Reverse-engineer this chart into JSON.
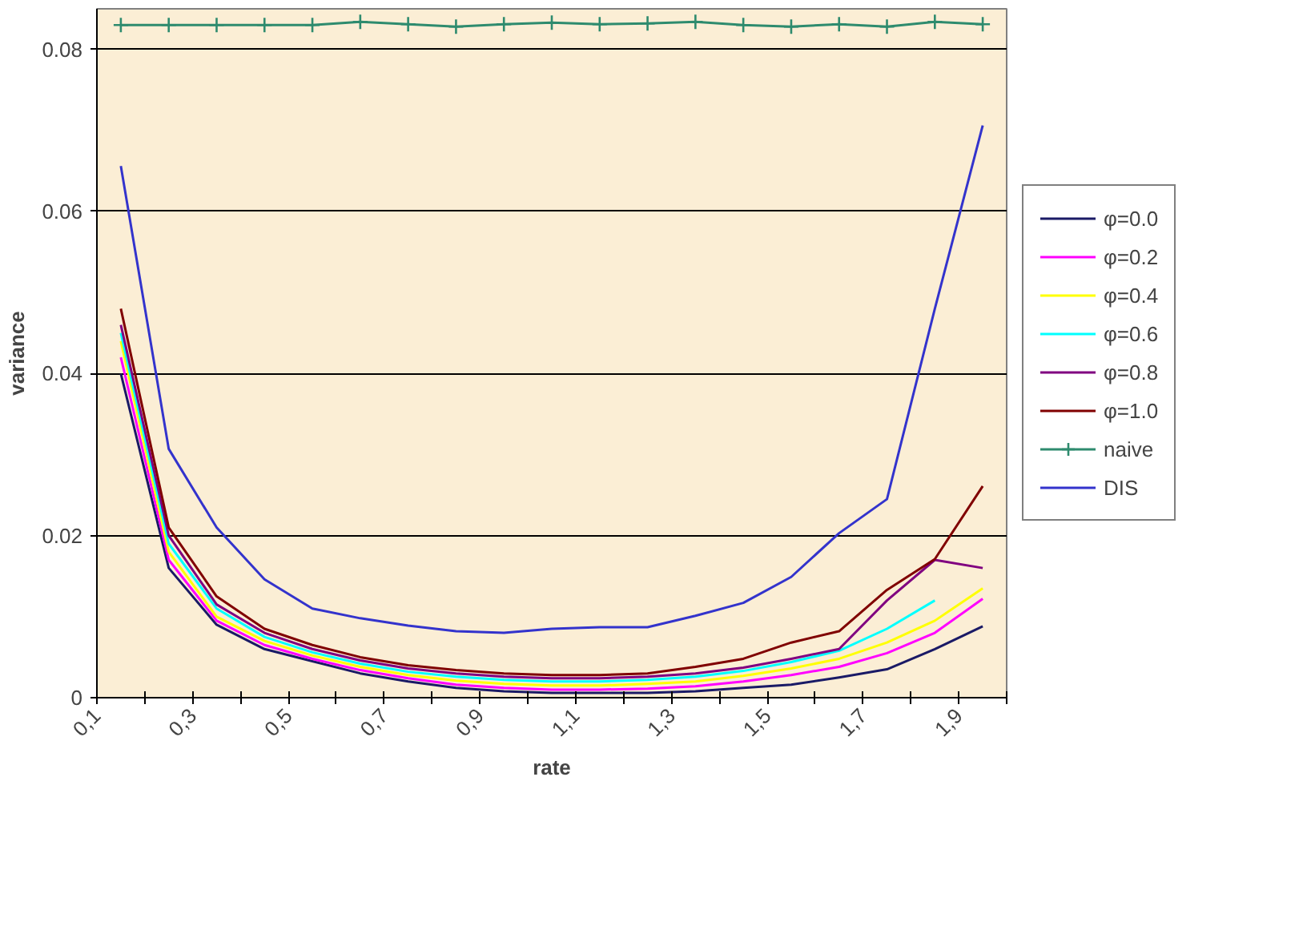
{
  "chart_data": {
    "type": "line",
    "xlabel": "rate",
    "ylabel": "variance",
    "x": [
      0.15,
      0.25,
      0.35,
      0.45,
      0.55,
      0.65,
      0.75,
      0.85,
      0.95,
      1.05,
      1.15,
      1.25,
      1.35,
      1.45,
      1.55,
      1.65,
      1.75,
      1.85,
      1.95
    ],
    "xlim": [
      0.1,
      2.0
    ],
    "xticks": [
      {
        "value": 0.1,
        "label": "0,1"
      },
      {
        "value": 0.2,
        "label": null
      },
      {
        "value": 0.3,
        "label": "0,3"
      },
      {
        "value": 0.4,
        "label": null
      },
      {
        "value": 0.5,
        "label": "0,5"
      },
      {
        "value": 0.6,
        "label": null
      },
      {
        "value": 0.7,
        "label": "0,7"
      },
      {
        "value": 0.8,
        "label": null
      },
      {
        "value": 0.9,
        "label": "0,9"
      },
      {
        "value": 1.0,
        "label": null
      },
      {
        "value": 1.1,
        "label": "1,1"
      },
      {
        "value": 1.2,
        "label": null
      },
      {
        "value": 1.3,
        "label": "1,3"
      },
      {
        "value": 1.4,
        "label": null
      },
      {
        "value": 1.5,
        "label": "1,5"
      },
      {
        "value": 1.6,
        "label": null
      },
      {
        "value": 1.7,
        "label": "1,7"
      },
      {
        "value": 1.8,
        "label": null
      },
      {
        "value": 1.9,
        "label": "1,9"
      },
      {
        "value": 2.0,
        "label": null
      }
    ],
    "ylim": [
      0,
      0.085
    ],
    "yticks": [
      0,
      0.02,
      0.04,
      0.06,
      0.08
    ],
    "grid": "y",
    "legend": "right",
    "marker": "none",
    "line_style": "solid",
    "series": [
      {
        "name": "φ=0.0",
        "color": "#1a1a66",
        "values": [
          0.04,
          0.016,
          0.009,
          0.006,
          0.0045,
          0.003,
          0.002,
          0.0012,
          0.0008,
          0.0006,
          0.0006,
          0.0006,
          0.0008,
          0.0012,
          0.0016,
          0.0025,
          0.0035,
          0.006,
          0.0088
        ]
      },
      {
        "name": "φ=0.2",
        "color": "#ff00ff",
        "values": [
          0.042,
          0.017,
          0.0095,
          0.0065,
          0.0048,
          0.0034,
          0.0024,
          0.0016,
          0.0012,
          0.001,
          0.001,
          0.0011,
          0.0014,
          0.002,
          0.0028,
          0.0038,
          0.0055,
          0.008,
          0.0122
        ]
      },
      {
        "name": "φ=0.4",
        "color": "#ffff00",
        "values": [
          0.044,
          0.018,
          0.01,
          0.007,
          0.0052,
          0.0038,
          0.0028,
          0.0021,
          0.0017,
          0.0015,
          0.0015,
          0.0017,
          0.002,
          0.0027,
          0.0036,
          0.0048,
          0.0068,
          0.0095,
          0.0135
        ]
      },
      {
        "name": "φ=0.6",
        "color": "#00ffff",
        "values": [
          0.045,
          0.019,
          0.011,
          0.0075,
          0.0056,
          0.0042,
          0.0032,
          0.0026,
          0.0022,
          0.002,
          0.002,
          0.0022,
          0.0026,
          0.0033,
          0.0044,
          0.0058,
          0.0085,
          0.012,
          null
        ]
      },
      {
        "name": "φ=0.8",
        "color": "#800080",
        "values": [
          0.046,
          0.02,
          0.0115,
          0.008,
          0.006,
          0.0046,
          0.0036,
          0.003,
          0.0026,
          0.0024,
          0.0024,
          0.0026,
          0.003,
          0.0037,
          0.0048,
          0.006,
          0.012,
          0.017,
          0.016
        ]
      },
      {
        "name": "φ=1.0",
        "color": "#800000",
        "values": [
          0.048,
          0.021,
          0.0125,
          0.0085,
          0.0065,
          0.005,
          0.004,
          0.0034,
          0.003,
          0.0028,
          0.0028,
          0.003,
          0.0038,
          0.0048,
          0.0068,
          0.0082,
          0.0133,
          0.0171,
          0.0261
        ]
      },
      {
        "name": "naive",
        "color": "#2e8b6e",
        "marker": "cross",
        "values": [
          0.083,
          0.083,
          0.083,
          0.083,
          0.083,
          0.0834,
          0.0831,
          0.0828,
          0.0831,
          0.0833,
          0.0831,
          0.0832,
          0.0834,
          0.083,
          0.0828,
          0.0831,
          0.0828,
          0.0834,
          0.0831
        ]
      },
      {
        "name": "DIS",
        "color": "#3333cc",
        "values": [
          0.0656,
          0.0307,
          0.021,
          0.0146,
          0.011,
          0.0098,
          0.0089,
          0.0082,
          0.008,
          0.0085,
          0.0087,
          0.0087,
          0.0101,
          0.0117,
          0.0149,
          0.0203,
          0.0245,
          0.048,
          0.0706
        ]
      }
    ]
  }
}
